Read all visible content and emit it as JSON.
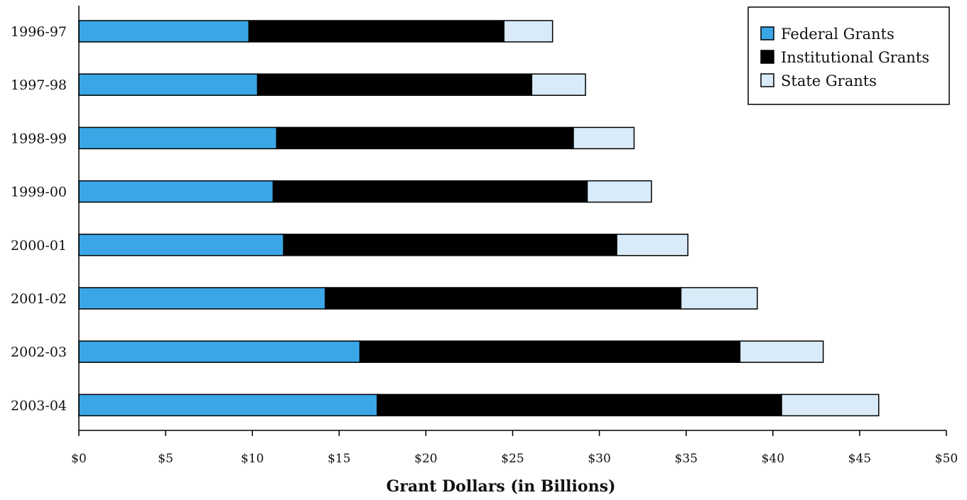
{
  "chart_data": {
    "type": "bar",
    "orientation": "horizontal",
    "stacked": true,
    "title": "",
    "xlabel": "Grant Dollars (in Billions)",
    "ylabel": "",
    "xlim": [
      0,
      50
    ],
    "x_ticks": [
      0,
      5,
      10,
      15,
      20,
      25,
      30,
      35,
      40,
      45,
      50
    ],
    "x_tick_labels": [
      "$0",
      "$5",
      "$10",
      "$15",
      "$20",
      "$25",
      "$30",
      "$35",
      "$40",
      "$45",
      "$50"
    ],
    "grid": false,
    "legend_position": "top-right",
    "categories": [
      "1996-97",
      "1997-98",
      "1998-99",
      "1999-00",
      "2000-01",
      "2001-02",
      "2002-03",
      "2003-04"
    ],
    "series": [
      {
        "name": "Federal Grants",
        "color": "#3aa6e6",
        "values": [
          9.8,
          10.3,
          11.4,
          11.2,
          11.8,
          14.2,
          16.2,
          17.2
        ]
      },
      {
        "name": "Institutional Grants",
        "color": "#000000",
        "values": [
          14.7,
          15.8,
          17.1,
          18.1,
          19.2,
          20.5,
          21.9,
          23.3
        ]
      },
      {
        "name": "State Grants",
        "color": "#d9ebf9",
        "values": [
          2.8,
          3.1,
          3.5,
          3.7,
          4.1,
          4.4,
          4.8,
          5.6
        ]
      }
    ]
  }
}
